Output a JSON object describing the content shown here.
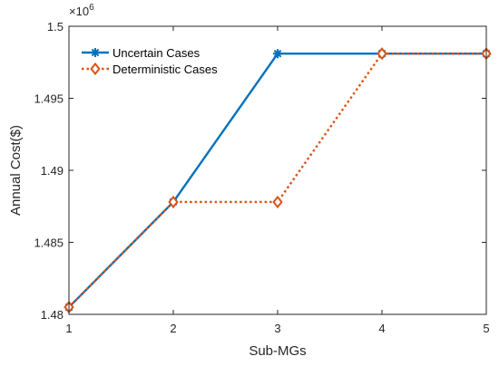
{
  "chart_data": {
    "type": "line",
    "title": "",
    "xlabel": "Sub-MGs",
    "ylabel": "Annual Cost($)",
    "exponent_label": "×10",
    "exponent_power": "6",
    "x": [
      1,
      2,
      3,
      4,
      5
    ],
    "xlim": [
      1,
      5
    ],
    "ylim": [
      1.48,
      1.5
    ],
    "xticks": [
      "1",
      "2",
      "3",
      "4",
      "5"
    ],
    "yticks": [
      "1.48",
      "1.485",
      "1.49",
      "1.495",
      "1.5"
    ],
    "ytick_values": [
      1.48,
      1.485,
      1.49,
      1.495,
      1.5
    ],
    "grid": false,
    "legend_position": "top-left",
    "series": [
      {
        "name": "Uncertain Cases",
        "values": [
          1.4805,
          1.4878,
          1.4981,
          1.4981,
          1.4981
        ],
        "color": "#0072BD",
        "line_style": "solid",
        "marker": "asterisk"
      },
      {
        "name": "Deterministic Cases",
        "values": [
          1.4805,
          1.4878,
          1.4878,
          1.4981,
          1.4981
        ],
        "color": "#D95319",
        "line_style": "dotted",
        "marker": "diamond"
      }
    ]
  }
}
